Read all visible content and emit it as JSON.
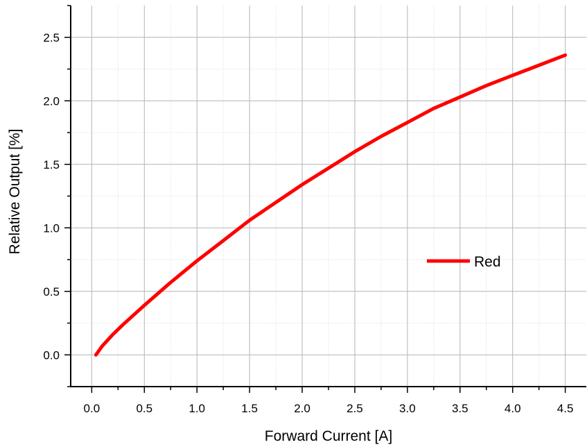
{
  "chart_data": {
    "type": "line",
    "title": "",
    "xlabel": "Forward Current [A]",
    "ylabel": "Relative Output [%]",
    "xlim": [
      -0.2,
      4.7
    ],
    "ylim": [
      -0.25,
      2.75
    ],
    "xticks": [
      0.0,
      0.5,
      1.0,
      1.5,
      2.0,
      2.5,
      3.0,
      3.5,
      4.0,
      4.5
    ],
    "xtick_labels": [
      "0.0",
      "0.5",
      "1.0",
      "1.5",
      "2.0",
      "2.5",
      "3.0",
      "3.5",
      "4.0",
      "4.5"
    ],
    "yticks": [
      0.0,
      0.5,
      1.0,
      1.5,
      2.0,
      2.5
    ],
    "ytick_labels": [
      "0.0",
      "0.5",
      "1.0",
      "1.5",
      "2.0",
      "2.5"
    ],
    "grid": true,
    "legend_position": "right-center",
    "series": [
      {
        "name": "Red",
        "color": "#ff0000",
        "x": [
          0.04,
          0.1,
          0.2,
          0.3,
          0.5,
          0.75,
          1.0,
          1.25,
          1.5,
          1.75,
          2.0,
          2.25,
          2.5,
          2.75,
          3.0,
          3.25,
          3.5,
          3.75,
          4.0,
          4.25,
          4.5
        ],
        "y": [
          0.0,
          0.07,
          0.16,
          0.24,
          0.39,
          0.57,
          0.74,
          0.9,
          1.06,
          1.2,
          1.34,
          1.47,
          1.6,
          1.72,
          1.83,
          1.94,
          2.03,
          2.12,
          2.2,
          2.28,
          2.36
        ]
      }
    ]
  }
}
